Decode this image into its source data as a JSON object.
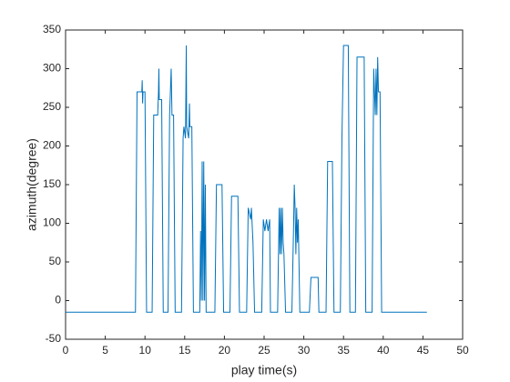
{
  "chart_data": {
    "type": "line",
    "xlabel": "play time(s)",
    "ylabel": "azimuth(degree)",
    "xlim": [
      0,
      50
    ],
    "xticks": [
      0,
      5,
      10,
      15,
      20,
      25,
      30,
      35,
      40,
      45,
      50
    ],
    "ylim": [
      -50,
      350
    ],
    "yticks": [
      -50,
      0,
      50,
      100,
      150,
      200,
      250,
      300,
      350
    ],
    "x": [
      0,
      8.8,
      9.0,
      9.6,
      9.65,
      9.7,
      9.75,
      10.0,
      10.2,
      10.9,
      11.1,
      11.6,
      11.7,
      11.75,
      11.8,
      12.1,
      12.3,
      12.9,
      13.1,
      13.3,
      13.4,
      13.6,
      13.8,
      14.6,
      14.8,
      14.9,
      15.1,
      15.2,
      15.25,
      15.5,
      15.6,
      15.65,
      15.9,
      16.1,
      16.9,
      17.0,
      17.1,
      17.2,
      17.3,
      17.4,
      17.5,
      17.6,
      17.7,
      18.8,
      19.0,
      19.7,
      19.9,
      20.7,
      20.9,
      21.7,
      21.9,
      22.8,
      23.0,
      23.3,
      23.4,
      23.6,
      23.8,
      24.7,
      24.9,
      25.1,
      25.3,
      25.5,
      25.7,
      25.8,
      26.7,
      26.9,
      27.0,
      27.1,
      27.2,
      27.3,
      27.4,
      27.5,
      27.7,
      28.5,
      28.7,
      28.8,
      28.9,
      29.0,
      29.1,
      29.2,
      29.3,
      29.5,
      30.7,
      30.9,
      31.8,
      31.9,
      32.8,
      33.0,
      33.6,
      33.8,
      34.6,
      34.8,
      35.0,
      35.6,
      35.8,
      36.5,
      36.7,
      37.6,
      37.8,
      38.6,
      38.8,
      39.0,
      39.1,
      39.2,
      39.3,
      39.4,
      39.6,
      39.8,
      45.5
    ],
    "series": [
      {
        "color": "#0072bd",
        "values": [
          -15,
          -15,
          270,
          270,
          285,
          255,
          270,
          270,
          -15,
          -15,
          240,
          240,
          270,
          300,
          260,
          260,
          -15,
          -15,
          240,
          300,
          240,
          240,
          -15,
          -15,
          210,
          225,
          210,
          330,
          225,
          210,
          255,
          225,
          225,
          -15,
          -15,
          90,
          0,
          180,
          0,
          180,
          0,
          150,
          -15,
          -15,
          150,
          150,
          -15,
          -15,
          135,
          135,
          -15,
          -15,
          120,
          105,
          120,
          75,
          -15,
          -15,
          105,
          90,
          105,
          90,
          105,
          -15,
          -15,
          120,
          60,
          120,
          60,
          120,
          75,
          60,
          -15,
          -15,
          90,
          150,
          120,
          60,
          120,
          75,
          105,
          -15,
          -15,
          30,
          30,
          -15,
          -15,
          180,
          180,
          -15,
          -15,
          210,
          330,
          330,
          -15,
          -15,
          315,
          315,
          -15,
          -15,
          300,
          240,
          300,
          240,
          315,
          270,
          270,
          -15,
          -15
        ]
      }
    ]
  }
}
